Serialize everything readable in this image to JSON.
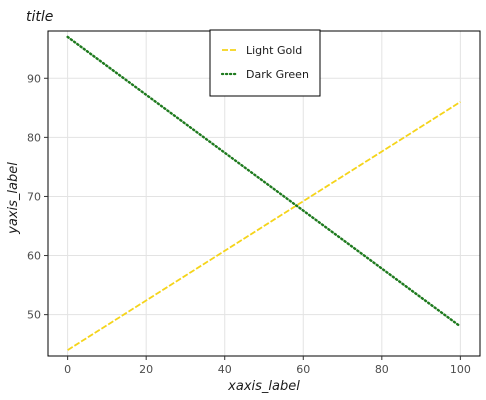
{
  "chart_data": {
    "type": "line",
    "title": "title",
    "xlabel": "xaxis_label",
    "ylabel": "yaxis_label",
    "xlim": [
      -5,
      105
    ],
    "ylim": [
      43,
      98
    ],
    "xticks": [
      0,
      20,
      40,
      60,
      80,
      100
    ],
    "yticks": [
      50,
      60,
      70,
      80,
      90
    ],
    "grid": true,
    "legend_position": "top-center",
    "series": [
      {
        "name": "Light Gold",
        "color": "#f5d41a",
        "style": "dashed",
        "x": [
          0,
          100
        ],
        "y": [
          44,
          86
        ]
      },
      {
        "name": "Dark Green",
        "color": "#1e7a1e",
        "style": "dotted",
        "x": [
          0,
          100
        ],
        "y": [
          97,
          48
        ]
      }
    ]
  }
}
